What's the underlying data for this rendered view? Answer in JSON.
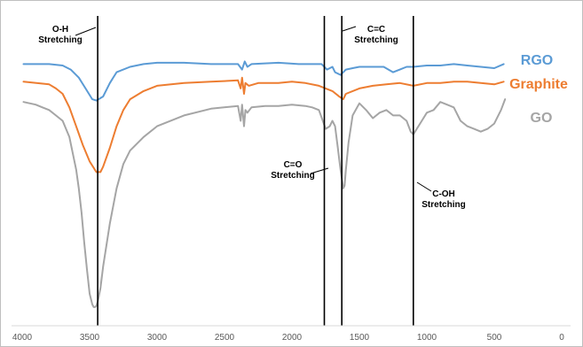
{
  "chart_data": {
    "type": "line",
    "xlim": [
      4000,
      0
    ],
    "x_ticks": [
      4000,
      3500,
      3000,
      2500,
      2000,
      1500,
      1000,
      500,
      0
    ],
    "ylim": [
      0,
      100
    ],
    "grid": false,
    "legend_position": "right",
    "series": [
      {
        "name": "RGO",
        "color": "#5b9bd5",
        "x": [
          3990,
          3800,
          3700,
          3640,
          3580,
          3530,
          3480,
          3450,
          3400,
          3350,
          3300,
          3200,
          3100,
          3000,
          2800,
          2600,
          2400,
          2370,
          2350,
          2330,
          2300,
          2100,
          1950,
          1850,
          1780,
          1740,
          1700,
          1680,
          1640,
          1620,
          1600,
          1550,
          1500,
          1450,
          1400,
          1320,
          1250,
          1200,
          1150,
          1100,
          1000,
          900,
          800,
          700,
          600,
          500,
          430
        ],
        "y": [
          91,
          91,
          90.5,
          89,
          86,
          82,
          78,
          77.5,
          79,
          84,
          88,
          90,
          91,
          91.5,
          91.5,
          91,
          91,
          89,
          92,
          90,
          91,
          91.5,
          91,
          91,
          91,
          89,
          90,
          88,
          87,
          88,
          89,
          89.5,
          90,
          90,
          90,
          90,
          88,
          89,
          90,
          90,
          90.5,
          90.5,
          91,
          90.5,
          90,
          89.5,
          91
        ]
      },
      {
        "name": "Graphite",
        "color": "#ed7d31",
        "x": [
          3990,
          3800,
          3750,
          3700,
          3650,
          3600,
          3550,
          3500,
          3450,
          3420,
          3400,
          3350,
          3300,
          3250,
          3200,
          3100,
          3000,
          2800,
          2600,
          2400,
          2380,
          2370,
          2355,
          2345,
          2320,
          2250,
          2100,
          2000,
          1900,
          1800,
          1750,
          1700,
          1650,
          1620,
          1600,
          1500,
          1400,
          1300,
          1200,
          1100,
          1000,
          900,
          800,
          700,
          600,
          500,
          430
        ],
        "y": [
          84.5,
          83.5,
          82,
          80,
          75,
          68,
          61,
          55,
          51,
          51,
          53,
          60,
          68,
          74,
          78,
          81,
          83,
          84,
          84.5,
          85,
          82,
          86,
          80,
          84,
          83,
          84,
          84,
          84.5,
          84,
          83,
          82,
          81,
          79,
          78,
          80,
          82,
          83,
          83.5,
          84,
          83,
          84,
          84,
          84.5,
          84.5,
          84,
          83.5,
          84.5
        ]
      },
      {
        "name": "GO",
        "color": "#a5a5a5",
        "x": [
          3990,
          3900,
          3850,
          3800,
          3750,
          3700,
          3650,
          3600,
          3580,
          3560,
          3540,
          3520,
          3500,
          3480,
          3470,
          3460,
          3450,
          3440,
          3420,
          3400,
          3350,
          3300,
          3250,
          3200,
          3100,
          3000,
          2800,
          2600,
          2400,
          2380,
          2370,
          2355,
          2345,
          2330,
          2300,
          2200,
          2100,
          2000,
          1900,
          1850,
          1800,
          1750,
          1720,
          1700,
          1680,
          1660,
          1640,
          1620,
          1610,
          1600,
          1580,
          1550,
          1500,
          1450,
          1400,
          1350,
          1300,
          1250,
          1200,
          1150,
          1120,
          1100,
          1050,
          1000,
          950,
          900,
          850,
          800,
          750,
          700,
          650,
          600,
          550,
          500,
          450,
          420
        ],
        "y": [
          77,
          76,
          75,
          74,
          72,
          70,
          64,
          52,
          45,
          36,
          25,
          15,
          6,
          2,
          1,
          1,
          1.5,
          3,
          8,
          16,
          32,
          45,
          54,
          59,
          64,
          68,
          72,
          74.5,
          75.5,
          70,
          76,
          68,
          74,
          73,
          75,
          75.5,
          75.5,
          76,
          75.5,
          75,
          74,
          67,
          68,
          70,
          68,
          60,
          52,
          45,
          46,
          52,
          62,
          72,
          76.5,
          74,
          71,
          73,
          74,
          72,
          72,
          70,
          66,
          65,
          69,
          73,
          74,
          77,
          76,
          75,
          70,
          68,
          67,
          66,
          67,
          69,
          74,
          78
        ]
      }
    ],
    "annotations": [
      {
        "lines": [
          "O-H",
          "Stretching"
        ],
        "x": 3440
      },
      {
        "lines": [
          "C=O",
          "Stretching"
        ],
        "x": 1760
      },
      {
        "lines": [
          "C=C",
          "Stretching"
        ],
        "x": 1630
      },
      {
        "lines": [
          "C-OH",
          "Stretching"
        ],
        "x": 1100
      }
    ]
  }
}
